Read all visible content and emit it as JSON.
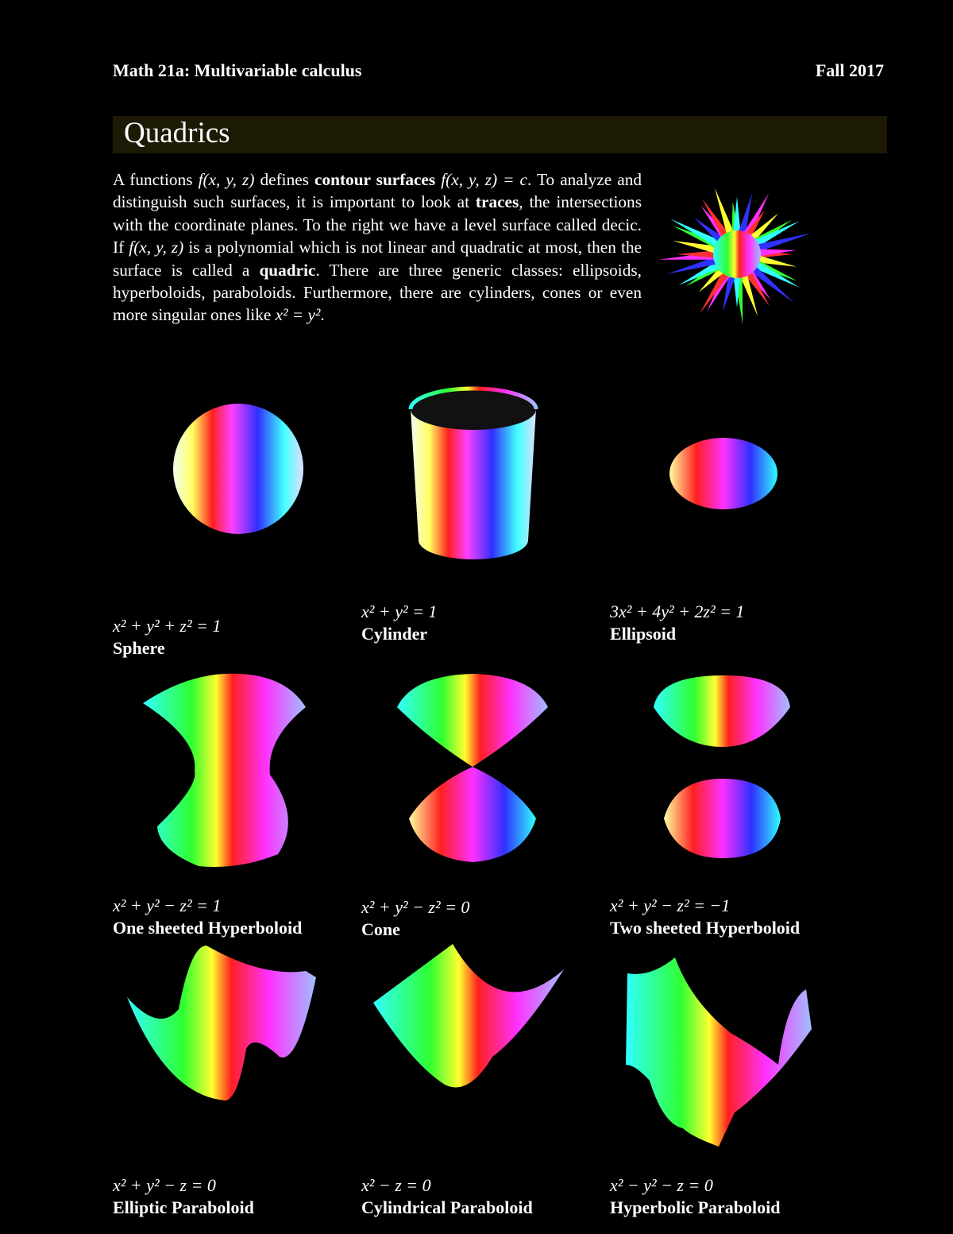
{
  "header": {
    "course": "Math 21a: Multivariable calculus",
    "term": "Fall 2017"
  },
  "section_title": "Quadrics",
  "intro": [
    {
      "t": "A functions ",
      "s": ""
    },
    {
      "t": "f(x, y, z)",
      "s": "i"
    },
    {
      "t": " defines ",
      "s": ""
    },
    {
      "t": "contour surfaces",
      "s": "b"
    },
    {
      "t": " ",
      "s": ""
    },
    {
      "t": "f(x, y, z) = c",
      "s": "i"
    },
    {
      "t": ". To analyze and distinguish such surfaces, it is important to look at ",
      "s": ""
    },
    {
      "t": "traces",
      "s": "b"
    },
    {
      "t": ", the intersections with the coordinate planes. To the right we have a level surface called decic. If ",
      "s": ""
    },
    {
      "t": "f(x, y, z)",
      "s": "i"
    },
    {
      "t": " is a polynomial which is not linear and quadratic at most, then the surface is called a ",
      "s": ""
    },
    {
      "t": "quadric",
      "s": "b"
    },
    {
      "t": ". There are three generic classes: ellipsoids, hyperboloids, paraboloids. Furthermore, there are cylinders, cones or even more singular ones like ",
      "s": ""
    },
    {
      "t": "x² = y²",
      "s": "i"
    },
    {
      "t": ".",
      "s": ""
    }
  ],
  "surfaces": [
    {
      "equation": "x² + y² + z² = 1",
      "name": "Sphere"
    },
    {
      "equation": "x² + y² = 1",
      "name": "Cylinder"
    },
    {
      "equation": "3x² + 4y² + 2z² = 1",
      "name": "Ellipsoid"
    },
    {
      "equation": "x² + y² − z² = 1",
      "name": "One sheeted Hyperboloid"
    },
    {
      "equation": "x² + y² − z² = 0",
      "name": "Cone"
    },
    {
      "equation": "x² + y² − z² = −1",
      "name": "Two sheeted Hyperboloid"
    },
    {
      "equation": "x² + y² − z = 0",
      "name": "Elliptic Paraboloid"
    },
    {
      "equation": "x² − z = 0",
      "name": "Cylindrical Paraboloid"
    },
    {
      "equation": "x² − y² − z = 0",
      "name": "Hyperbolic Paraboloid"
    }
  ],
  "colors": {
    "background": "#000000",
    "title_bar": "#1c1a05",
    "text": "#ffffff"
  }
}
